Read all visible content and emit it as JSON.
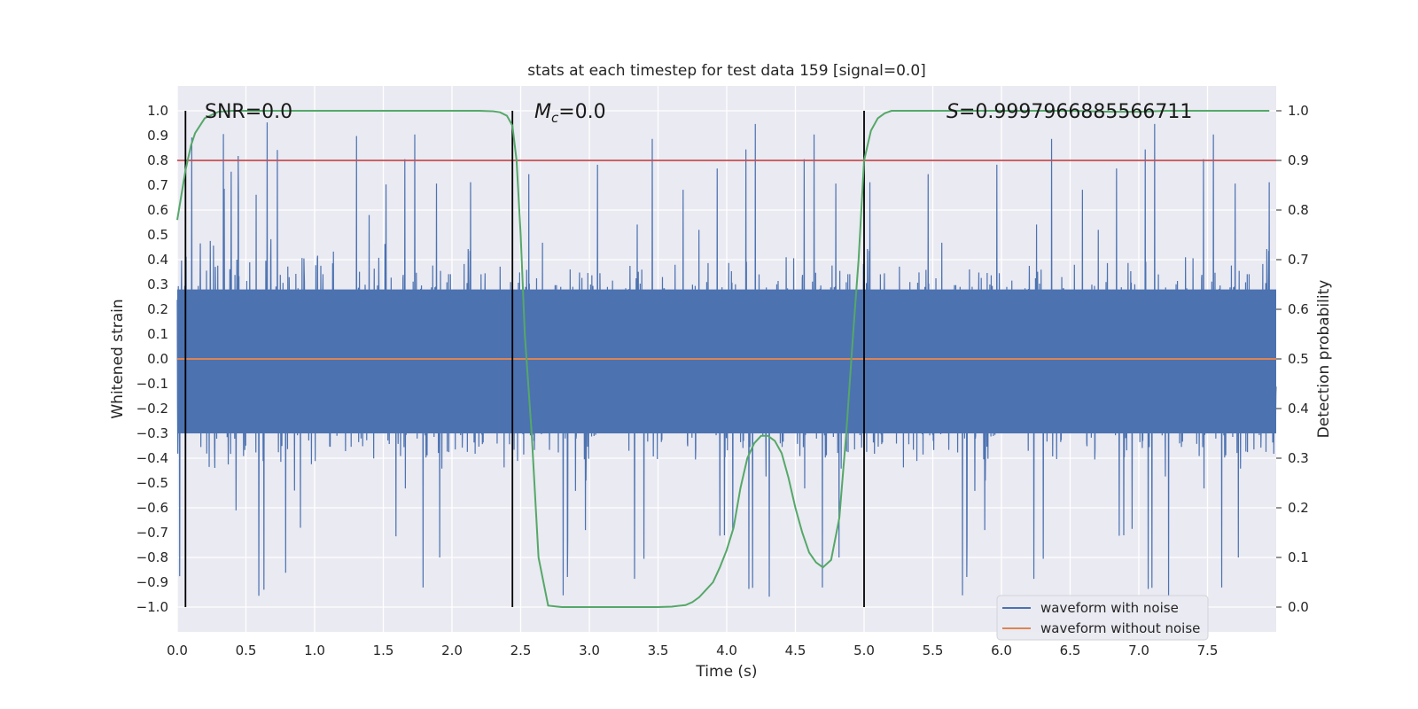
{
  "chart_data": {
    "type": "line",
    "title": "stats at each timestep for test data 159 [signal=0.0]",
    "xlabel": "Time (s)",
    "ylabel_left": "Whitened strain",
    "ylabel_right": "Detection probability",
    "xlim": [
      0.0,
      8.0
    ],
    "ylim_left": [
      -1.1,
      1.1
    ],
    "ylim_right": [
      -0.05,
      1.05
    ],
    "x_ticks": [
      "0.0",
      "0.5",
      "1.0",
      "1.5",
      "2.0",
      "2.5",
      "3.0",
      "3.5",
      "4.0",
      "4.5",
      "5.0",
      "5.5",
      "6.0",
      "6.5",
      "7.0",
      "7.5"
    ],
    "y_left_ticks": [
      "1.0",
      "0.9",
      "0.8",
      "0.7",
      "0.6",
      "0.5",
      "0.4",
      "0.3",
      "0.2",
      "0.1",
      "0.0",
      "−0.1",
      "−0.2",
      "−0.3",
      "−0.4",
      "−0.5",
      "−0.6",
      "−0.7",
      "−0.8",
      "−0.9",
      "−1.0"
    ],
    "y_right_ticks": [
      "1.0",
      "0.9",
      "0.8",
      "0.7",
      "0.6",
      "0.5",
      "0.4",
      "0.3",
      "0.2",
      "0.1",
      "0.0"
    ],
    "annotations": {
      "snr": "SNR=0.0",
      "mc_symbol": "M",
      "mc_subscript": "c",
      "mc_value": "=0.0",
      "s_symbol": "S",
      "s_value": "=0.9997966885566711"
    },
    "threshold": 0.9,
    "vertical_markers_s": [
      0.06,
      2.44,
      5.0
    ],
    "series": [
      {
        "name": "waveform with noise",
        "color": "#4c72b0",
        "axis": "left",
        "description_amplitude": "noise roughly in [-1.0, 1.0], clustered mostly within [-0.5, 0.6]"
      },
      {
        "name": "waveform without noise",
        "color": "#dd8452",
        "axis": "left",
        "x": [
          0.0,
          8.0
        ],
        "values": [
          0.0,
          0.0
        ]
      },
      {
        "name": "detection probability",
        "color": "#55a868",
        "axis": "right",
        "x": [
          0.0,
          0.06,
          0.1,
          0.13,
          0.2,
          0.3,
          0.4,
          0.6,
          1.0,
          1.5,
          2.0,
          2.2,
          2.3,
          2.35,
          2.4,
          2.44,
          2.47,
          2.5,
          2.53,
          2.58,
          2.63,
          2.7,
          2.8,
          3.0,
          3.3,
          3.5,
          3.6,
          3.7,
          3.75,
          3.8,
          3.85,
          3.9,
          3.95,
          4.0,
          4.05,
          4.1,
          4.15,
          4.2,
          4.25,
          4.3,
          4.35,
          4.4,
          4.45,
          4.5,
          4.55,
          4.6,
          4.65,
          4.7,
          4.76,
          4.82,
          4.87,
          4.92,
          4.96,
          5.0,
          5.05,
          5.1,
          5.15,
          5.2,
          5.4,
          5.6,
          5.8,
          6.0,
          6.2,
          6.5,
          6.8,
          7.0,
          7.2,
          7.4,
          7.6,
          7.8,
          7.95
        ],
        "values": [
          0.78,
          0.88,
          0.93,
          0.955,
          0.985,
          0.998,
          1.0,
          1.0,
          1.0,
          1.0,
          1.0,
          1.0,
          0.999,
          0.997,
          0.99,
          0.97,
          0.9,
          0.75,
          0.55,
          0.35,
          0.1,
          0.003,
          0.0,
          0.0,
          0.0,
          0.0,
          0.001,
          0.004,
          0.01,
          0.02,
          0.035,
          0.05,
          0.08,
          0.115,
          0.16,
          0.24,
          0.3,
          0.33,
          0.345,
          0.345,
          0.335,
          0.31,
          0.26,
          0.2,
          0.15,
          0.11,
          0.09,
          0.08,
          0.095,
          0.18,
          0.35,
          0.55,
          0.7,
          0.9,
          0.96,
          0.985,
          0.995,
          1.0,
          1.0,
          1.0,
          1.0,
          1.0,
          1.0,
          1.0,
          0.998,
          0.998,
          1.0,
          1.0,
          1.0,
          1.0,
          1.0
        ]
      }
    ],
    "legend": {
      "placement": "bottom-right",
      "entries": [
        {
          "label": "waveform with noise",
          "color": "#4c72b0"
        },
        {
          "label": "waveform without noise",
          "color": "#dd8452"
        }
      ]
    },
    "colors": {
      "axes_background": "#eaeaf2",
      "grid": "#ffffff",
      "noise": "#4c72b0",
      "clean": "#dd8452",
      "probability": "#55a868",
      "threshold": "#c44e52",
      "marker": "#000000"
    }
  }
}
